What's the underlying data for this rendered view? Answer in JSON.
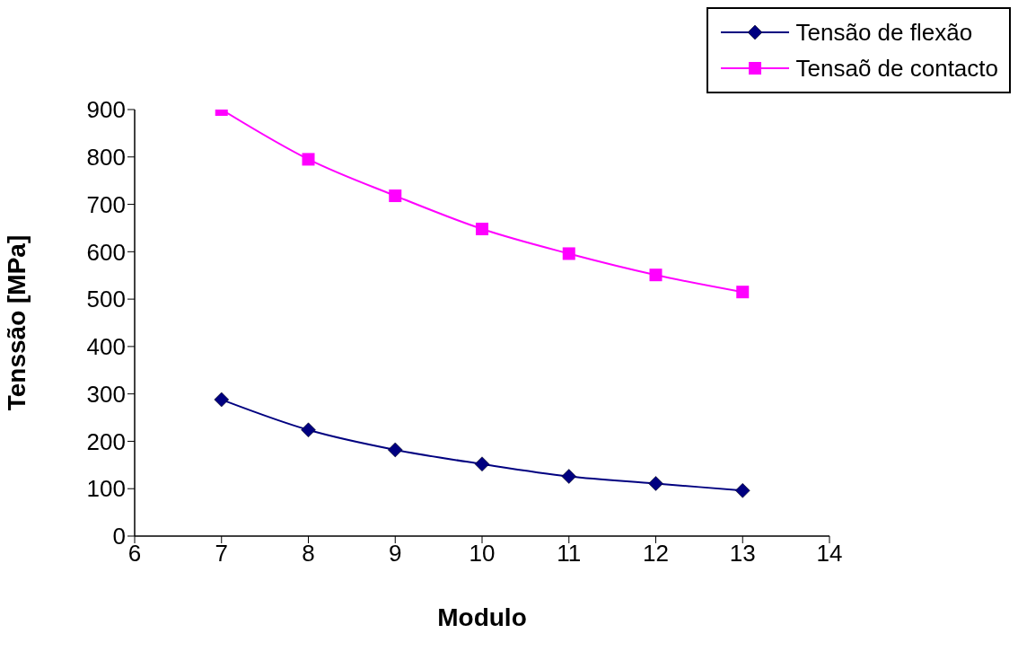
{
  "chart_data": {
    "type": "line",
    "xlabel": "Modulo",
    "ylabel": "Tenssão  [MPa]",
    "x": [
      7,
      8,
      9,
      10,
      11,
      12,
      13
    ],
    "series": [
      {
        "name": "Tensão de flexão",
        "color": "#000080",
        "marker": "diamond",
        "values": [
          288,
          224,
          182,
          152,
          126,
          111,
          96
        ]
      },
      {
        "name": "Tensaõ de contacto",
        "color": "#ff00ff",
        "marker": "square",
        "values": [
          900,
          795,
          718,
          648,
          596,
          551,
          515
        ]
      }
    ],
    "xlim": [
      6,
      14
    ],
    "xticks": [
      6,
      7,
      8,
      9,
      10,
      11,
      12,
      13,
      14
    ],
    "ylim": [
      0,
      900
    ],
    "yticks": [
      0,
      100,
      200,
      300,
      400,
      500,
      600,
      700,
      800,
      900
    ],
    "grid": false,
    "legend": "top right",
    "line_style": "solid"
  }
}
